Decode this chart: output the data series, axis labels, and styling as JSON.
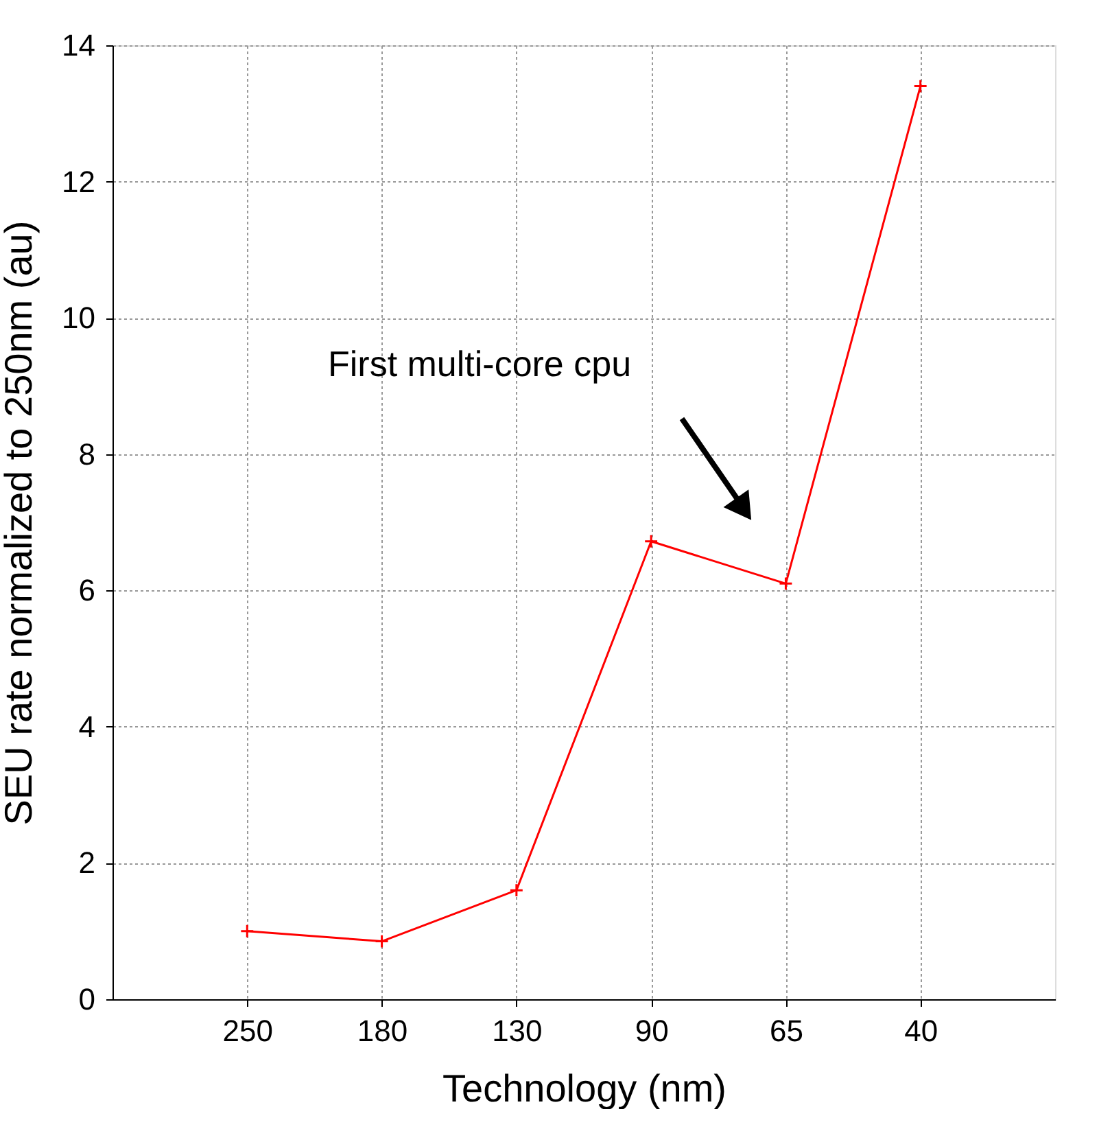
{
  "chart_data": {
    "type": "line",
    "xlabel": "Technology (nm)",
    "ylabel": "SEU rate normalized to 250nm (au)",
    "categories": [
      "250",
      "180",
      "130",
      "90",
      "65",
      "40"
    ],
    "series": [
      {
        "color": "#ff0000",
        "values": [
          1.0,
          0.85,
          1.6,
          6.72,
          6.1,
          13.4
        ]
      }
    ],
    "ylim": [
      0,
      14
    ],
    "yticks": [
      0,
      2,
      4,
      6,
      8,
      10,
      12,
      14
    ],
    "annotations": [
      "First multi-core cpu"
    ],
    "grid": true,
    "marker": "cross",
    "line_style": "solid"
  }
}
